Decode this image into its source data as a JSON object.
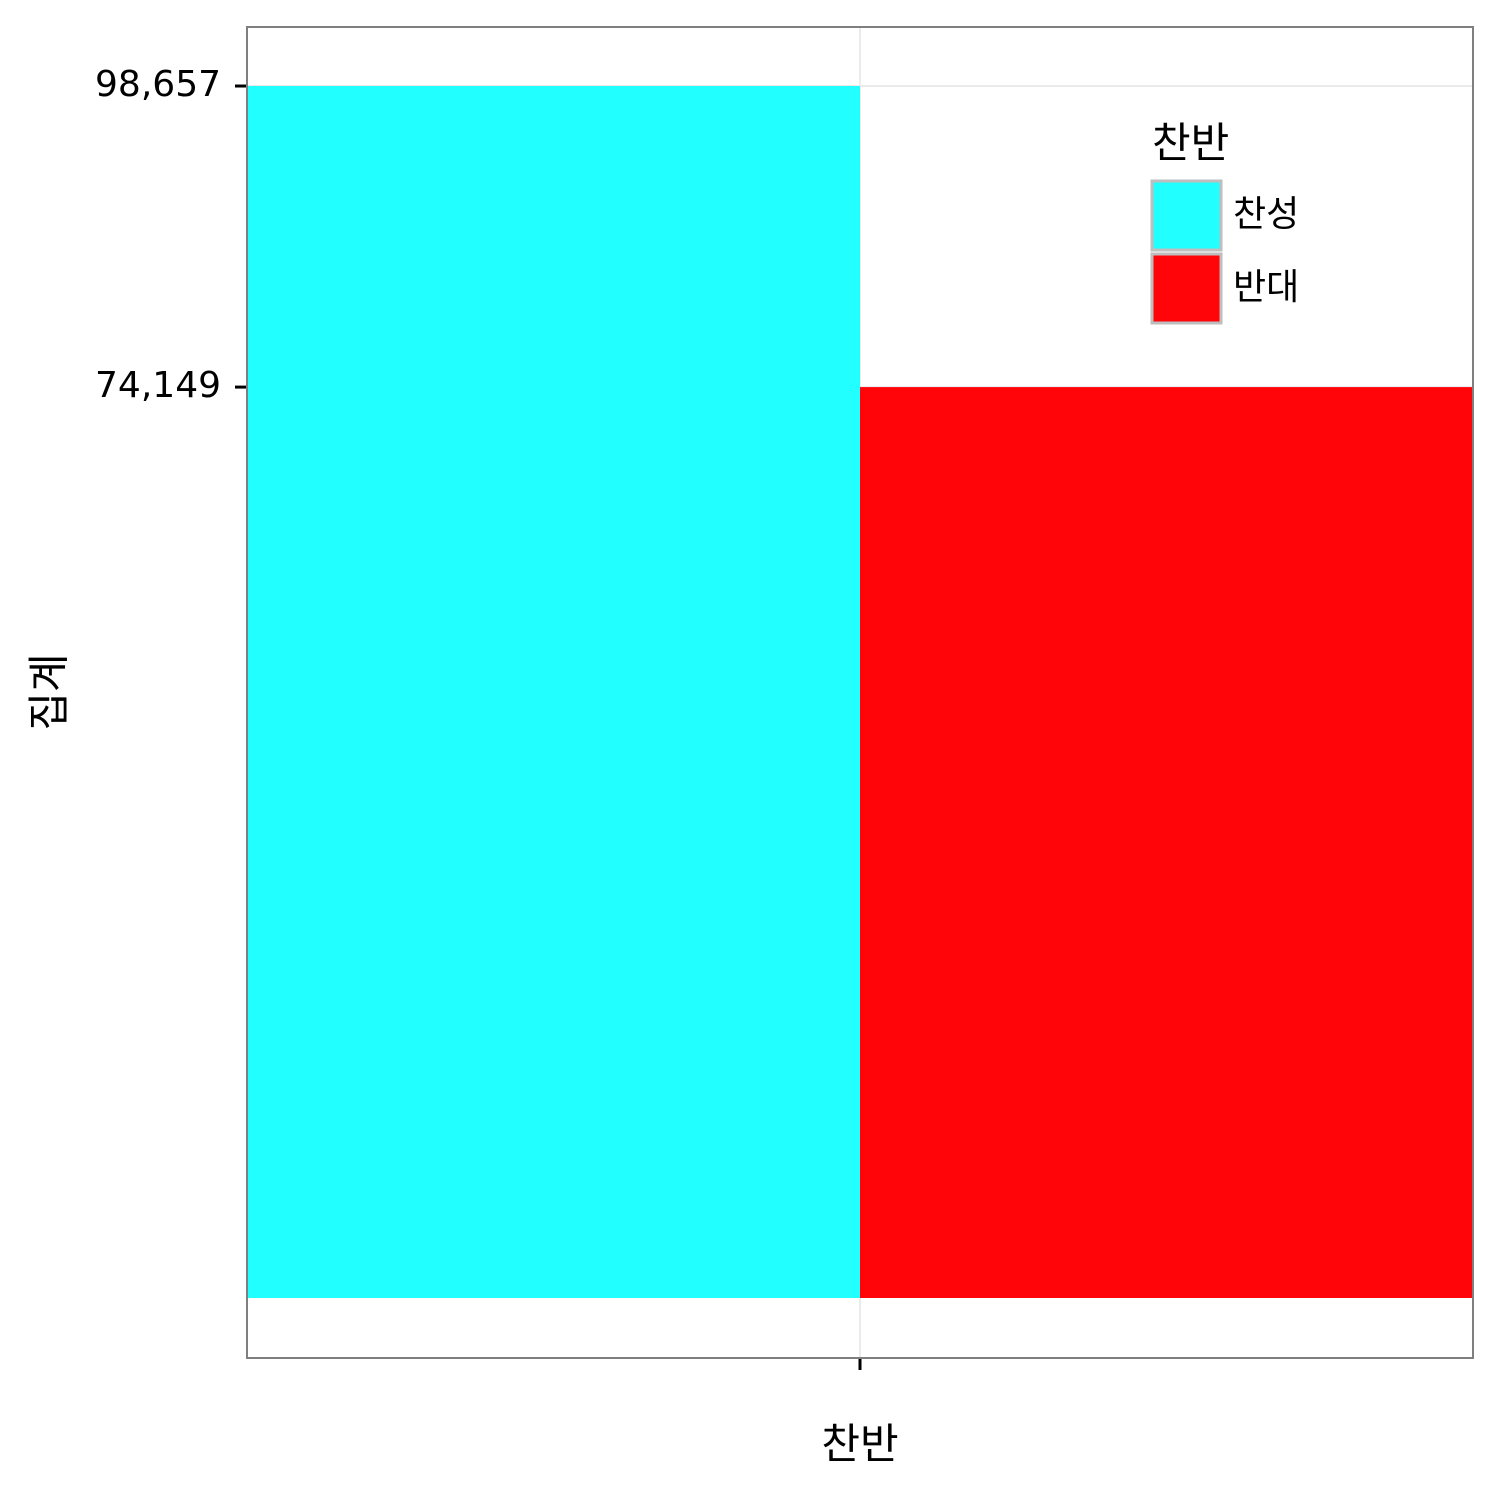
{
  "chart_data": {
    "type": "bar",
    "x_label": "찬반",
    "y_label": "집계",
    "categories": [
      null
    ],
    "series": [
      {
        "name": "찬성",
        "color": "#22ffff",
        "values": [
          98657
        ]
      },
      {
        "name": "반대",
        "color": "#ff0409",
        "values": [
          74149
        ]
      }
    ],
    "legend_title": "찬반",
    "legend": "top-right",
    "ylim": [
      -4885,
      103461
    ],
    "yticks": [
      {
        "value": 74149,
        "label": "74,149"
      },
      {
        "value": 98657,
        "label": "98,657"
      }
    ],
    "grid": true
  }
}
